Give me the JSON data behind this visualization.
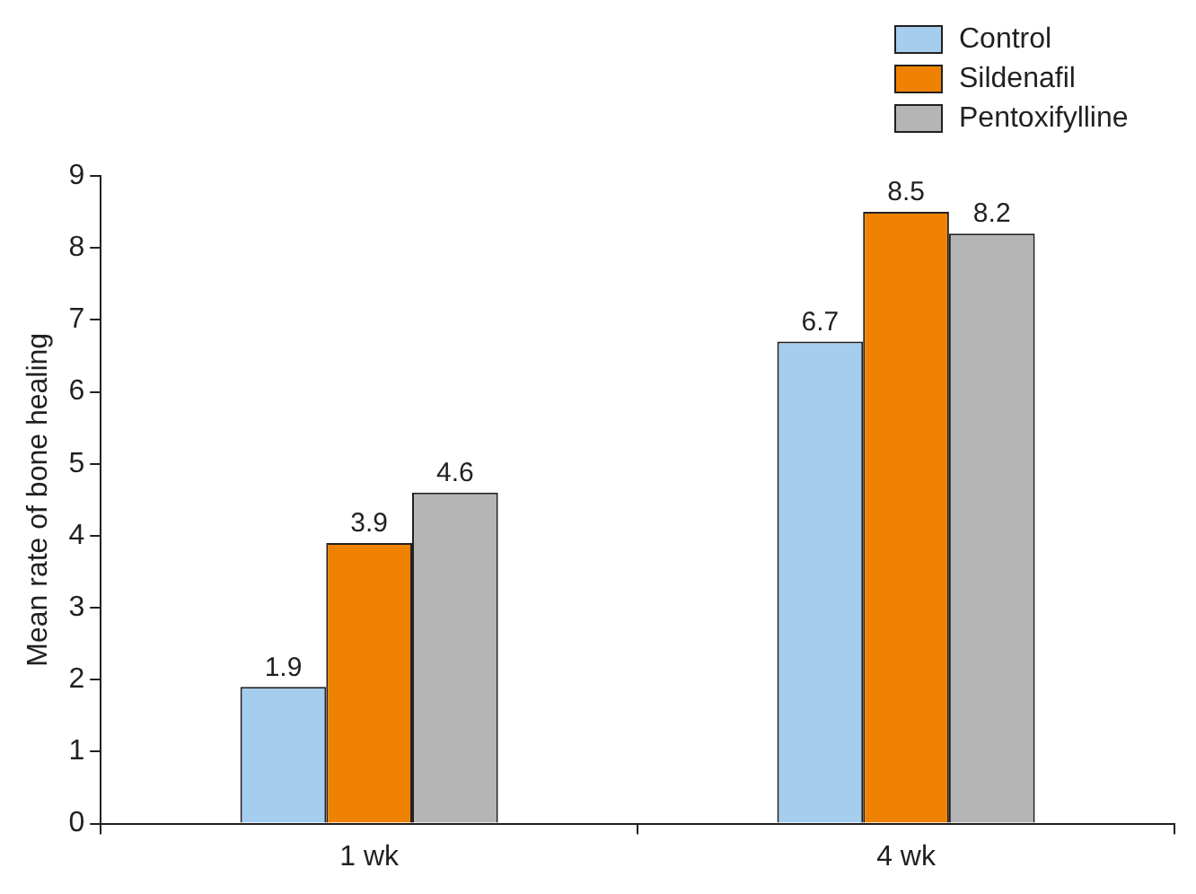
{
  "chart_data": {
    "type": "bar",
    "ylabel": "Mean rate of bone healing",
    "categories": [
      "1 wk",
      "4 wk"
    ],
    "series": [
      {
        "name": "Control",
        "color": "#a5cdee",
        "values": [
          1.9,
          6.7
        ]
      },
      {
        "name": "Sildenafil",
        "color": "#ef8200",
        "values": [
          3.9,
          8.5
        ]
      },
      {
        "name": "Pentoxifylline",
        "color": "#b5b5b5",
        "values": [
          4.6,
          8.2
        ]
      }
    ],
    "ylim": [
      0,
      9
    ],
    "yticks": [
      0,
      1,
      2,
      3,
      4,
      5,
      6,
      7,
      8,
      9
    ],
    "grid": false,
    "legend": "top right",
    "data_labels": true
  }
}
